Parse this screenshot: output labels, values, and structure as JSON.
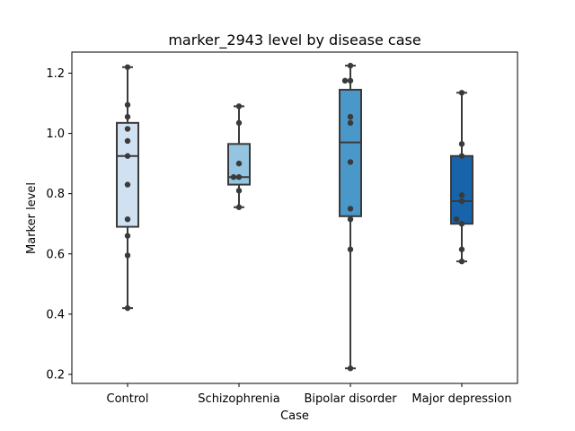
{
  "chart_data": {
    "type": "box",
    "title": "marker_2943 level by disease case",
    "xlabel": "Case",
    "ylabel": "Marker level",
    "ylim": [
      0.17,
      1.27
    ],
    "yticks": [
      0.2,
      0.4,
      0.6,
      0.8,
      1.0,
      1.2
    ],
    "ytick_labels": [
      "0.2",
      "0.4",
      "0.6",
      "0.8",
      "1.0",
      "1.2"
    ],
    "grid": false,
    "categories": [
      "Control",
      "Schizophrenia",
      "Bipolar disorder",
      "Major depression"
    ],
    "colors": [
      "#d0e1f2",
      "#94c4df",
      "#4a98c9",
      "#1764ab"
    ],
    "boxes": [
      {
        "min": 0.42,
        "q1": 0.69,
        "median": 0.925,
        "q3": 1.035,
        "max": 1.22
      },
      {
        "min": 0.755,
        "q1": 0.83,
        "median": 0.855,
        "q3": 0.965,
        "max": 1.09
      },
      {
        "min": 0.22,
        "q1": 0.725,
        "median": 0.97,
        "q3": 1.145,
        "max": 1.225
      },
      {
        "min": 0.575,
        "q1": 0.7,
        "median": 0.775,
        "q3": 0.925,
        "max": 1.135
      }
    ],
    "points": [
      [
        0.42,
        0.595,
        0.66,
        0.715,
        0.83,
        0.925,
        0.975,
        1.015,
        1.055,
        1.095,
        1.22
      ],
      [
        0.755,
        0.81,
        0.855,
        0.855,
        0.9,
        1.035,
        1.09
      ],
      [
        0.22,
        0.615,
        0.715,
        0.75,
        0.905,
        1.035,
        1.055,
        1.175,
        1.175,
        1.225
      ],
      [
        0.575,
        0.615,
        0.7,
        0.715,
        0.775,
        0.795,
        0.925,
        0.965,
        1.135
      ]
    ]
  }
}
